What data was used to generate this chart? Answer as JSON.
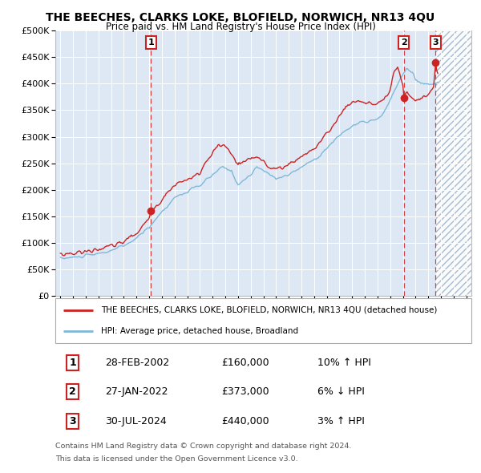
{
  "title": "THE BEECHES, CLARKS LOKE, BLOFIELD, NORWICH, NR13 4QU",
  "subtitle": "Price paid vs. HM Land Registry's House Price Index (HPI)",
  "legend_line1": "THE BEECHES, CLARKS LOKE, BLOFIELD, NORWICH, NR13 4QU (detached house)",
  "legend_line2": "HPI: Average price, detached house, Broadland",
  "transactions": [
    {
      "num": 1,
      "date": "28-FEB-2002",
      "price": 160000,
      "hpi_rel": "10% ↑ HPI",
      "x_year": 2002.15
    },
    {
      "num": 2,
      "date": "27-JAN-2022",
      "price": 373000,
      "hpi_rel": "6% ↓ HPI",
      "x_year": 2022.08
    },
    {
      "num": 3,
      "date": "30-JUL-2024",
      "price": 440000,
      "hpi_rel": "3% ↑ HPI",
      "x_year": 2024.58
    }
  ],
  "footer_line1": "Contains HM Land Registry data © Crown copyright and database right 2024.",
  "footer_line2": "This data is licensed under the Open Government Licence v3.0.",
  "hpi_color": "#7fb8d8",
  "price_color": "#cc2222",
  "background_color": "#dde8f4",
  "ylim": [
    0,
    500000
  ],
  "yticks": [
    0,
    50000,
    100000,
    150000,
    200000,
    250000,
    300000,
    350000,
    400000,
    450000,
    500000
  ],
  "xlim_start": 1994.6,
  "xlim_end": 2027.4,
  "future_start": 2024.65,
  "hpi_anchors": [
    [
      1995.0,
      70000
    ],
    [
      1996.0,
      72000
    ],
    [
      1997.0,
      75000
    ],
    [
      1998.0,
      79000
    ],
    [
      1999.0,
      85000
    ],
    [
      2000.0,
      94000
    ],
    [
      2001.0,
      108000
    ],
    [
      2002.0,
      130000
    ],
    [
      2003.0,
      158000
    ],
    [
      2004.0,
      185000
    ],
    [
      2005.0,
      196000
    ],
    [
      2006.0,
      208000
    ],
    [
      2007.0,
      228000
    ],
    [
      2007.8,
      243000
    ],
    [
      2008.5,
      235000
    ],
    [
      2009.0,
      210000
    ],
    [
      2009.5,
      218000
    ],
    [
      2010.0,
      228000
    ],
    [
      2010.5,
      242000
    ],
    [
      2011.0,
      237000
    ],
    [
      2011.5,
      228000
    ],
    [
      2012.0,
      222000
    ],
    [
      2012.5,
      225000
    ],
    [
      2013.0,
      228000
    ],
    [
      2013.5,
      235000
    ],
    [
      2014.0,
      243000
    ],
    [
      2014.5,
      250000
    ],
    [
      2015.0,
      258000
    ],
    [
      2015.5,
      265000
    ],
    [
      2016.0,
      278000
    ],
    [
      2016.5,
      290000
    ],
    [
      2017.0,
      303000
    ],
    [
      2017.5,
      312000
    ],
    [
      2018.0,
      320000
    ],
    [
      2018.5,
      325000
    ],
    [
      2019.0,
      328000
    ],
    [
      2019.5,
      330000
    ],
    [
      2020.0,
      332000
    ],
    [
      2020.5,
      345000
    ],
    [
      2021.0,
      368000
    ],
    [
      2021.5,
      395000
    ],
    [
      2022.0,
      418000
    ],
    [
      2022.3,
      430000
    ],
    [
      2022.8,
      420000
    ],
    [
      2023.0,
      405000
    ],
    [
      2023.5,
      400000
    ],
    [
      2024.0,
      398000
    ],
    [
      2024.5,
      402000
    ],
    [
      2024.7,
      400000
    ]
  ],
  "price_anchors": [
    [
      1995.0,
      78000
    ],
    [
      1996.0,
      80000
    ],
    [
      1997.0,
      83000
    ],
    [
      1998.0,
      88000
    ],
    [
      1999.0,
      93000
    ],
    [
      2000.0,
      102000
    ],
    [
      2001.0,
      118000
    ],
    [
      2002.0,
      145000
    ],
    [
      2002.15,
      160000
    ],
    [
      2003.0,
      182000
    ],
    [
      2004.0,
      210000
    ],
    [
      2005.0,
      218000
    ],
    [
      2006.0,
      232000
    ],
    [
      2007.0,
      270000
    ],
    [
      2007.5,
      284000
    ],
    [
      2008.0,
      282000
    ],
    [
      2008.5,
      265000
    ],
    [
      2009.0,
      248000
    ],
    [
      2009.5,
      252000
    ],
    [
      2010.0,
      258000
    ],
    [
      2010.5,
      262000
    ],
    [
      2011.0,
      255000
    ],
    [
      2011.5,
      242000
    ],
    [
      2012.0,
      238000
    ],
    [
      2012.5,
      242000
    ],
    [
      2013.0,
      248000
    ],
    [
      2013.5,
      255000
    ],
    [
      2014.0,
      263000
    ],
    [
      2014.5,
      270000
    ],
    [
      2015.0,
      278000
    ],
    [
      2015.5,
      290000
    ],
    [
      2016.0,
      305000
    ],
    [
      2016.5,
      322000
    ],
    [
      2017.0,
      340000
    ],
    [
      2017.5,
      355000
    ],
    [
      2018.0,
      365000
    ],
    [
      2018.5,
      368000
    ],
    [
      2019.0,
      365000
    ],
    [
      2019.5,
      362000
    ],
    [
      2020.0,
      360000
    ],
    [
      2020.5,
      368000
    ],
    [
      2021.0,
      388000
    ],
    [
      2021.3,
      420000
    ],
    [
      2021.6,
      430000
    ],
    [
      2022.0,
      395000
    ],
    [
      2022.08,
      373000
    ],
    [
      2022.3,
      385000
    ],
    [
      2022.6,
      378000
    ],
    [
      2023.0,
      368000
    ],
    [
      2023.5,
      372000
    ],
    [
      2024.0,
      380000
    ],
    [
      2024.4,
      390000
    ],
    [
      2024.58,
      440000
    ],
    [
      2024.65,
      430000
    ],
    [
      2024.7,
      420000
    ]
  ]
}
